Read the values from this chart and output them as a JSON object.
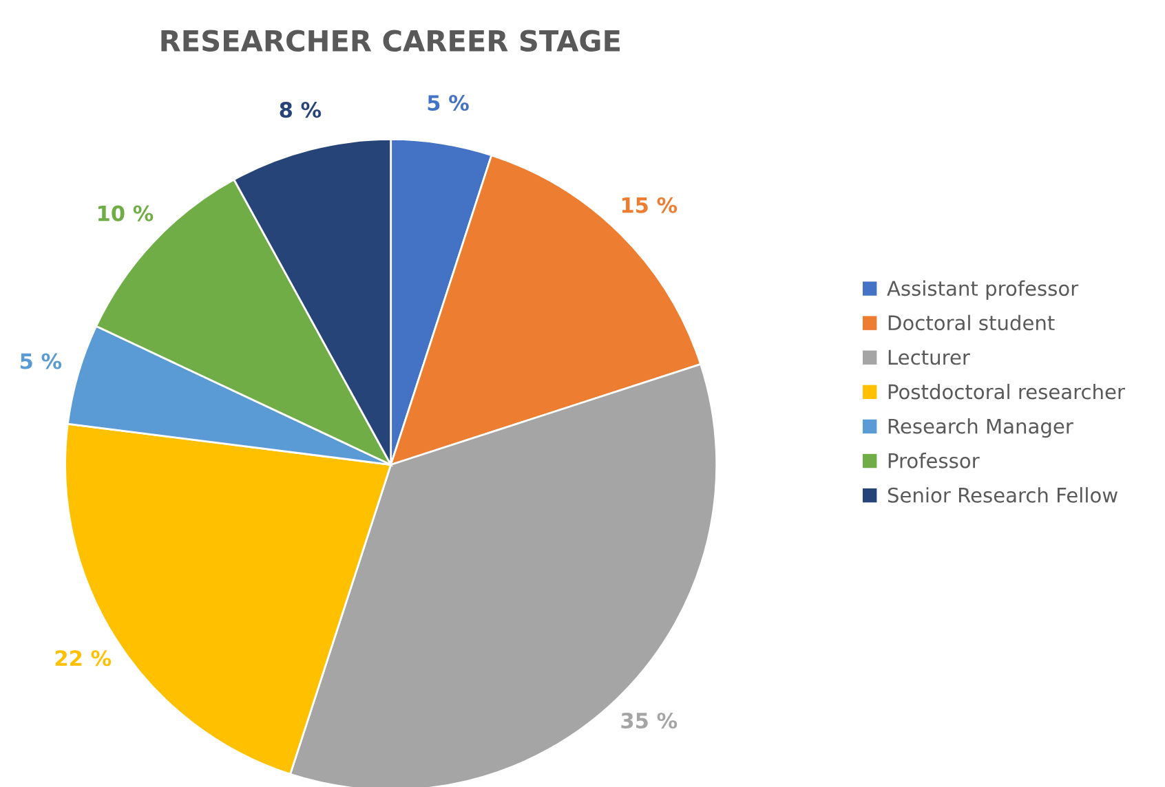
{
  "chart_data": {
    "type": "pie",
    "title": "RESEARCHER CAREER STAGE",
    "categories": [
      "Assistant professor",
      "Doctoral student",
      "Lecturer",
      "Postdoctoral researcher",
      "Research Manager",
      "Professor",
      "Senior Research Fellow"
    ],
    "values": [
      5,
      15,
      35,
      22,
      5,
      10,
      8
    ],
    "value_labels": [
      "5 %",
      "15 %",
      "35 %",
      "22 %",
      "5 %",
      "10 %",
      "8 %"
    ],
    "colors": [
      "#4472c4",
      "#ed7d31",
      "#a5a5a5",
      "#ffc000",
      "#5b9bd5",
      "#70ad47",
      "#264478"
    ],
    "legend": "right"
  }
}
